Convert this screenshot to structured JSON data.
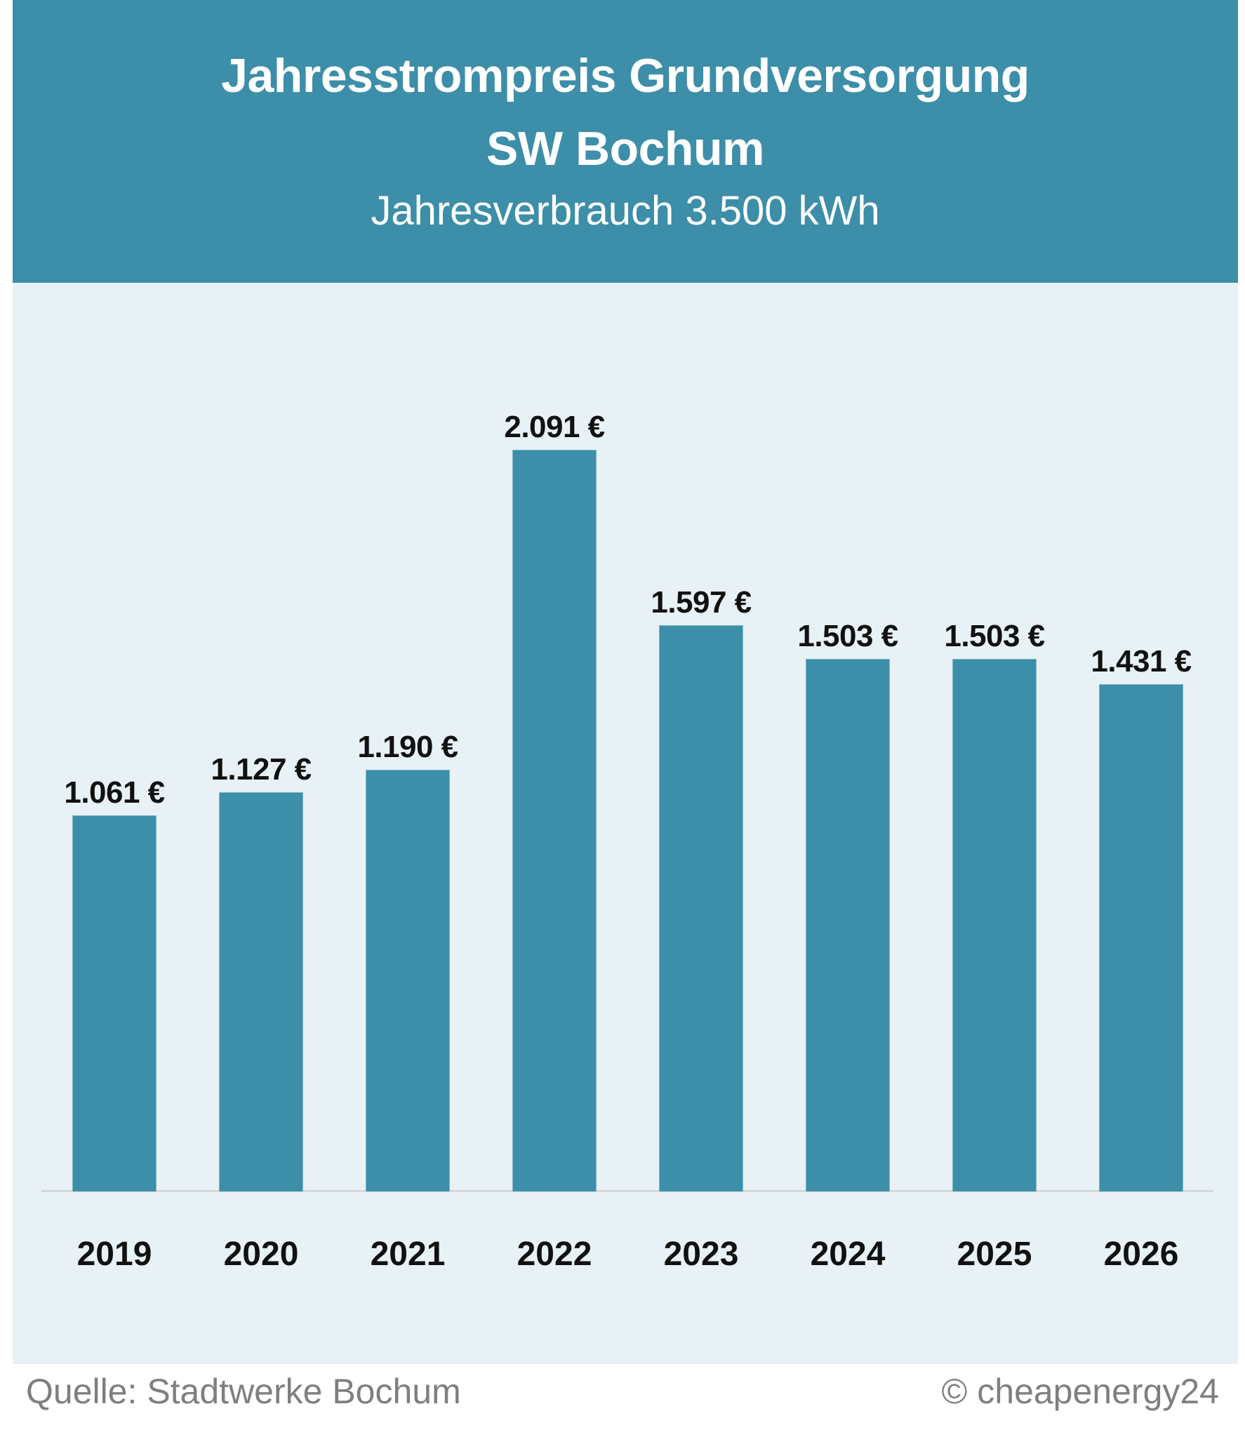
{
  "header": {
    "title_line1": "Jahresstrompreis Grundversorgung",
    "title_line2": "SW Bochum",
    "subtitle": "Jahresverbrauch 3.500 kWh"
  },
  "footer": {
    "source": "Quelle: Stadtwerke Bochum",
    "copyright": "© cheapenergy24"
  },
  "colors": {
    "header_bg": "#3d8ea8",
    "panel_bg": "#e8f1f5",
    "bar": "#3d8ea8",
    "label_text": "#111111",
    "footer_text": "#7f7f7f"
  },
  "chart_data": {
    "type": "bar",
    "title": "Jahresstrompreis Grundversorgung SW Bochum",
    "subtitle": "Jahresverbrauch 3.500 kWh",
    "xlabel": "",
    "ylabel": "",
    "categories": [
      "2019",
      "2020",
      "2021",
      "2022",
      "2023",
      "2024",
      "2025",
      "2026"
    ],
    "values": [
      1061,
      1127,
      1190,
      2091,
      1597,
      1503,
      1503,
      1431
    ],
    "value_labels": [
      "1.061 €",
      "1.127 €",
      "1.190 €",
      "2.091 €",
      "1.597 €",
      "1.503 €",
      "1.503 €",
      "1.431 €"
    ],
    "unit": "€",
    "ylim": [
      0,
      2300
    ],
    "grid": false,
    "legend": null,
    "source": "Quelle: Stadtwerke Bochum",
    "credit": "© cheapenergy24"
  }
}
